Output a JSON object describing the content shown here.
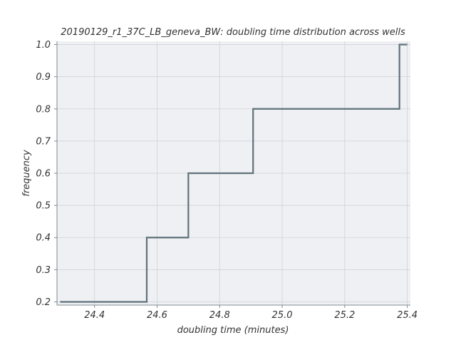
{
  "chart_data": {
    "type": "line",
    "subtype": "step-ecdf",
    "title": "20190129_r1_37C_LB_geneva_BW: doubling time distribution across wells",
    "xlabel": "doubling time (minutes)",
    "ylabel": "frequency",
    "xlim": [
      24.28,
      25.41
    ],
    "ylim": [
      0.19,
      1.01
    ],
    "xticks": [
      24.4,
      24.6,
      24.8,
      25.0,
      25.2,
      25.4
    ],
    "xtick_labels": [
      "24.4",
      "24.6",
      "24.8",
      "25.0",
      "25.2",
      "25.4"
    ],
    "yticks": [
      0.2,
      0.3,
      0.4,
      0.5,
      0.6,
      0.7,
      0.8,
      0.9,
      1.0
    ],
    "ytick_labels": [
      "0.2",
      "0.3",
      "0.4",
      "0.5",
      "0.6",
      "0.7",
      "0.8",
      "0.9",
      "1.0"
    ],
    "grid": true,
    "series": [
      {
        "x": [
          24.29,
          24.567,
          24.567,
          24.7,
          24.7,
          24.907,
          24.907,
          25.375,
          25.375,
          25.4
        ],
        "y": [
          0.2,
          0.2,
          0.4,
          0.4,
          0.6,
          0.6,
          0.8,
          0.8,
          1.0,
          1.0
        ],
        "color": "#5f727a"
      }
    ],
    "colors": {
      "plot_background": "#eff0f4",
      "grid": "#cfd1d6",
      "axis_line": "#7d8a90",
      "text": "#333333"
    }
  }
}
